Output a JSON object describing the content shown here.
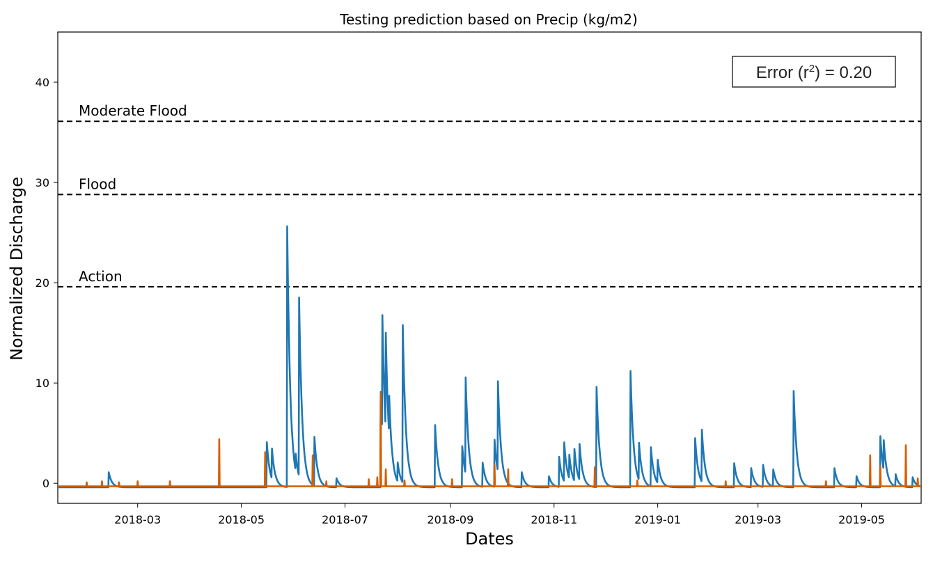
{
  "chart_data": {
    "type": "line",
    "title": "Testing prediction based on Precip (kg/m2)",
    "xlabel": "Dates",
    "ylabel": "Normalized Discharge",
    "xlim": [
      "2018-01-13",
      "2019-06-05"
    ],
    "ylim": [
      -2,
      45
    ],
    "x_ticks": [
      "2018-03",
      "2018-05",
      "2018-07",
      "2018-09",
      "2018-11",
      "2019-01",
      "2019-03",
      "2019-05"
    ],
    "y_ticks": [
      0,
      10,
      20,
      30,
      40
    ],
    "grid": false,
    "legend": "none",
    "thresholds": [
      {
        "label": "Moderate Flood",
        "value": 36.1
      },
      {
        "label": "Flood",
        "value": 28.8
      },
      {
        "label": "Action",
        "value": 19.6
      }
    ],
    "annotation": {
      "prefix": "Error (r",
      "superscript": "2",
      "suffix": ") = 0.20",
      "placement": "top-right"
    },
    "series": [
      {
        "color": "#1f77b4",
        "decay_days": 4,
        "baseline": -0.4,
        "peaks": [
          [
            "2018-02-12",
            1.1
          ],
          [
            "2018-05-16",
            4.1
          ],
          [
            "2018-05-19",
            2.6
          ],
          [
            "2018-05-28",
            25.6
          ],
          [
            "2018-06-02",
            1.3
          ],
          [
            "2018-06-04",
            17.4
          ],
          [
            "2018-06-13",
            4.5
          ],
          [
            "2018-06-26",
            0.5
          ],
          [
            "2018-07-22",
            9.1
          ],
          [
            "2018-07-23",
            11.3
          ],
          [
            "2018-07-25",
            9.3
          ],
          [
            "2018-07-27",
            3.6
          ],
          [
            "2018-08-01",
            1.5
          ],
          [
            "2018-08-04",
            15.3
          ],
          [
            "2018-08-23",
            5.8
          ],
          [
            "2018-09-08",
            3.7
          ],
          [
            "2018-09-10",
            9.2
          ],
          [
            "2018-09-20",
            2.0
          ],
          [
            "2018-09-27",
            4.3
          ],
          [
            "2018-09-29",
            8.6
          ],
          [
            "2018-10-13",
            1.1
          ],
          [
            "2018-10-29",
            0.7
          ],
          [
            "2018-11-04",
            2.6
          ],
          [
            "2018-11-07",
            3.5
          ],
          [
            "2018-11-10",
            2.0
          ],
          [
            "2018-11-13",
            2.8
          ],
          [
            "2018-11-16",
            3.2
          ],
          [
            "2018-11-26",
            9.6
          ],
          [
            "2018-12-16",
            11.2
          ],
          [
            "2018-12-21",
            3.3
          ],
          [
            "2018-12-28",
            3.5
          ],
          [
            "2019-01-01",
            1.9
          ],
          [
            "2019-01-23",
            4.5
          ],
          [
            "2019-01-27",
            4.8
          ],
          [
            "2019-02-15",
            2.0
          ],
          [
            "2019-02-25",
            1.5
          ],
          [
            "2019-03-04",
            1.8
          ],
          [
            "2019-03-10",
            1.3
          ],
          [
            "2019-03-22",
            9.2
          ],
          [
            "2019-04-15",
            1.5
          ],
          [
            "2019-04-28",
            0.7
          ],
          [
            "2019-05-12",
            4.7
          ],
          [
            "2019-05-14",
            2.6
          ],
          [
            "2019-05-21",
            0.8
          ],
          [
            "2019-05-31",
            0.6
          ]
        ]
      },
      {
        "color": "#d55e00",
        "decay_days": 0,
        "baseline": -0.3,
        "peaks": [
          [
            "2018-01-30",
            0.1
          ],
          [
            "2018-02-08",
            0.2
          ],
          [
            "2018-02-18",
            0.1
          ],
          [
            "2018-03-01",
            0.2
          ],
          [
            "2018-03-20",
            0.2
          ],
          [
            "2018-04-18",
            4.4
          ],
          [
            "2018-05-15",
            3.1
          ],
          [
            "2018-06-12",
            2.8
          ],
          [
            "2018-06-20",
            0.2
          ],
          [
            "2018-07-15",
            0.4
          ],
          [
            "2018-07-20",
            0.6
          ],
          [
            "2018-07-22",
            9.0
          ],
          [
            "2018-07-25",
            1.4
          ],
          [
            "2018-08-05",
            0.3
          ],
          [
            "2018-09-02",
            0.4
          ],
          [
            "2018-09-27",
            1.8
          ],
          [
            "2018-10-05",
            1.4
          ],
          [
            "2018-11-25",
            1.6
          ],
          [
            "2018-12-20",
            0.3
          ],
          [
            "2019-02-10",
            0.2
          ],
          [
            "2019-04-10",
            0.2
          ],
          [
            "2019-05-06",
            2.8
          ],
          [
            "2019-05-12",
            1.7
          ],
          [
            "2019-05-27",
            3.8
          ],
          [
            "2019-06-03",
            0.5
          ]
        ]
      }
    ]
  }
}
